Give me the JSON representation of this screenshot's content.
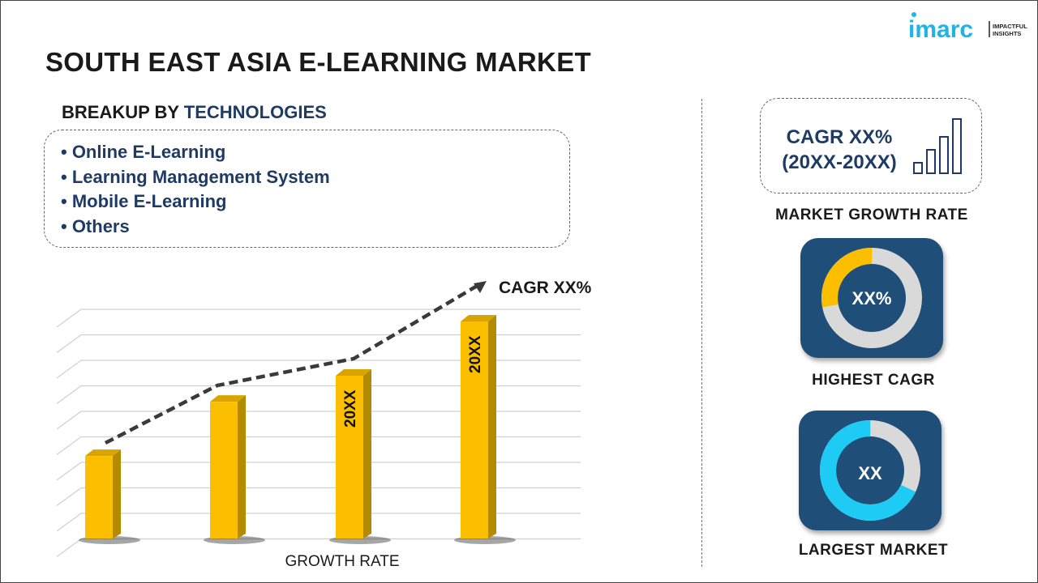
{
  "title": "SOUTH EAST ASIA E-LEARNING MARKET",
  "logo": {
    "text": "imarc",
    "tagline": "IMPACTFUL INSIGHTS",
    "color": "#1eb4e6"
  },
  "breakup": {
    "prefix": "BREAKUP BY ",
    "highlight": "TECHNOLOGIES",
    "items": [
      "• Online E-Learning",
      "• Learning Management System",
      "• Mobile E-Learning",
      "• Others"
    ]
  },
  "market_growth": {
    "line1": "CAGR XX%",
    "line2": "(20XX-20XX)",
    "label": "MARKET GROWTH RATE",
    "icon": "bar-chart-icon"
  },
  "highest_cagr": {
    "value": "XX%",
    "label": "HIGHEST CAGR",
    "fill_fraction": 0.28,
    "fill_color": "#fbbf00",
    "track_color": "#d9d9d9"
  },
  "largest_market": {
    "value": "XX",
    "label": "LARGEST MARKET",
    "fill_fraction": 0.68,
    "fill_color": "#1ecbf5",
    "track_color": "#d9d9d9"
  },
  "colors": {
    "navy": "#1f3b63",
    "bar": "#fbbf00",
    "bar_side": "#b38a00",
    "card": "#1f4e79"
  },
  "chart_data": {
    "type": "bar",
    "xlabel": "GROWTH RATE",
    "trend_label": "CAGR XX%",
    "bar_labels": [
      "",
      "",
      "20XX",
      "20XX"
    ],
    "values": [
      38,
      63,
      75,
      100
    ],
    "grid": true
  }
}
